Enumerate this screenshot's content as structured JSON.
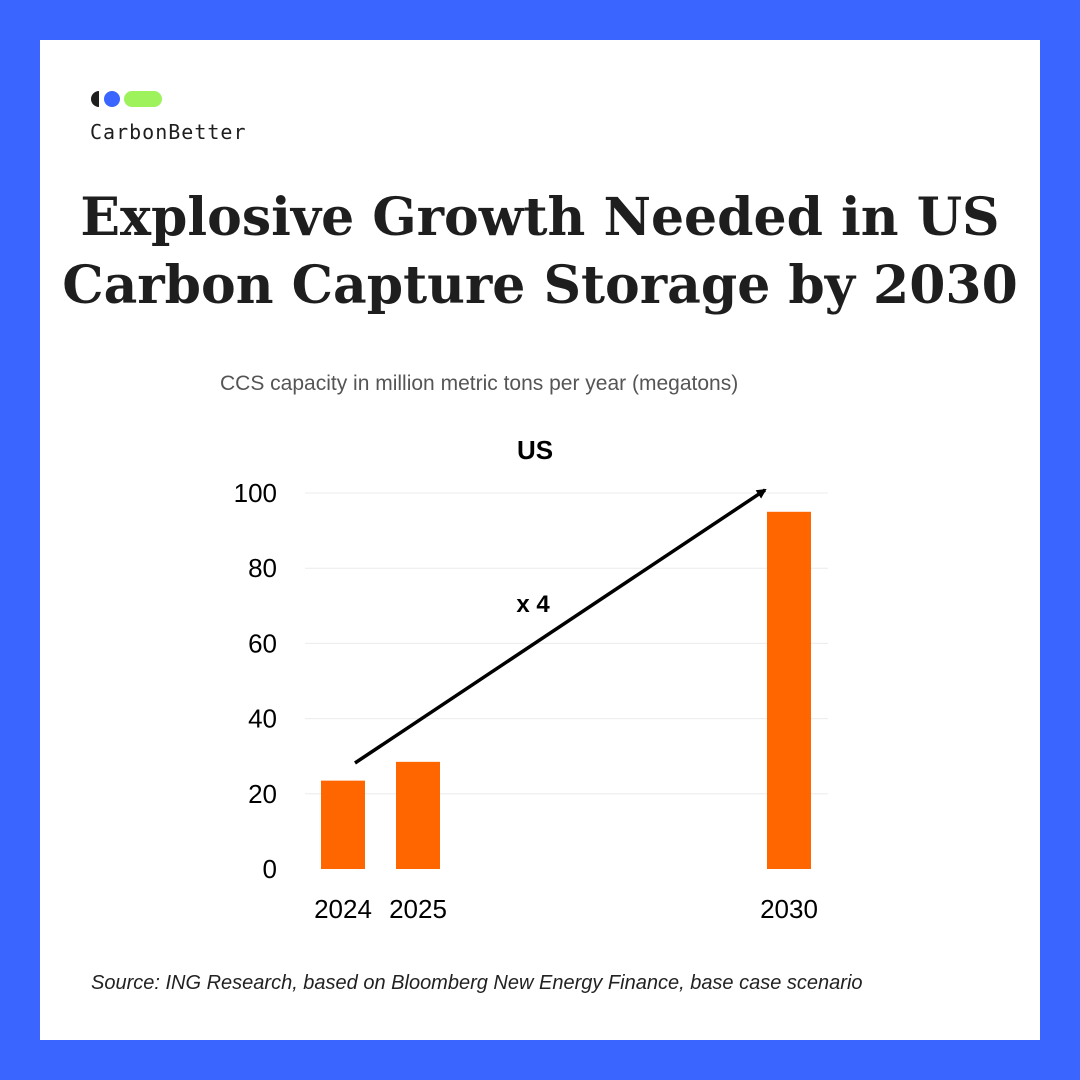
{
  "brand": {
    "name": "CarbonBetter"
  },
  "colors": {
    "frame": "#3a66ff",
    "bar": "#ff6600",
    "logo_dark": "#1e1e1e",
    "logo_blue": "#3a66ff",
    "logo_green": "#9ef25c"
  },
  "headline": {
    "line1": "Explosive Growth Needed in US",
    "line2": "Carbon Capture Storage by 2030"
  },
  "subtitle": "CCS capacity in million metric tons per year (megatons)",
  "chart_data": {
    "type": "bar",
    "title": "US",
    "categories": [
      "2024",
      "2025",
      "2030"
    ],
    "values": [
      23.5,
      28.5,
      95
    ],
    "ylim": [
      0,
      100
    ],
    "yticks": [
      0,
      20,
      40,
      60,
      80,
      100
    ],
    "xlabel": "",
    "ylabel": "",
    "grid": true,
    "annotation": {
      "text": "x 4",
      "arrow_from": "2024",
      "arrow_to": "2030"
    }
  },
  "source": "Source: ING Research, based on Bloomberg New Energy Finance, base case scenario"
}
